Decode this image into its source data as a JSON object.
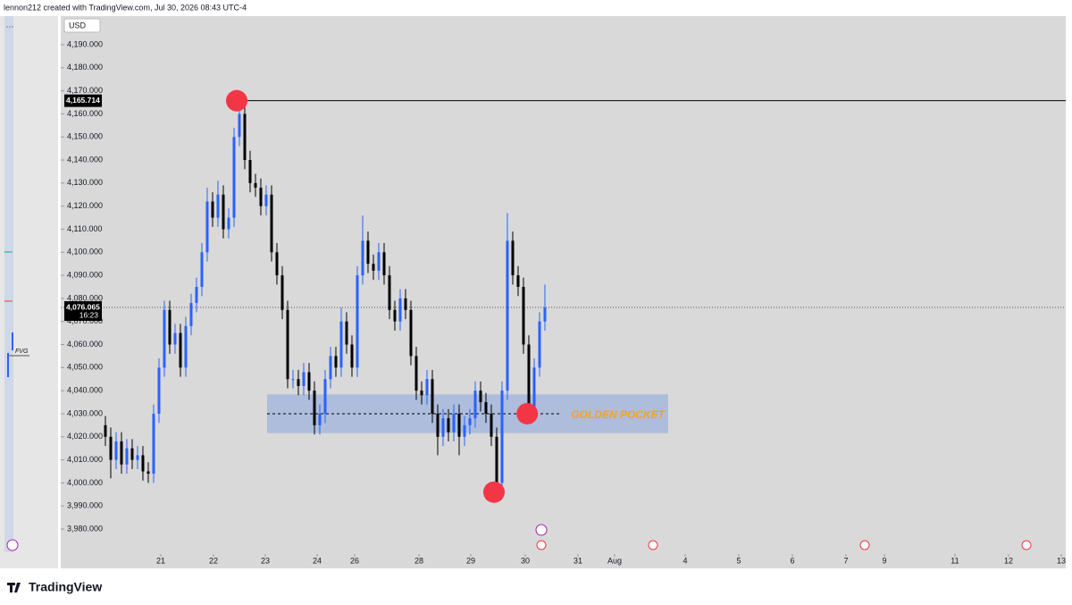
{
  "header": "lennon212 created with TradingView.com, Jul 30, 2026 08:43 UTC-4",
  "currency": "USD",
  "footer": "TradingView",
  "side_panel": {
    "menu": "···",
    "label": "FVG"
  },
  "chart_data": {
    "type": "candlestick",
    "up_color": "#2962ff",
    "down_color": "#000000",
    "xlim": [
      -7.33,
      180.17
    ],
    "xticks": [
      {
        "value": 11.33,
        "label": "21"
      },
      {
        "value": 21.17,
        "label": "22"
      },
      {
        "value": 30.83,
        "label": "23"
      },
      {
        "value": 40.5,
        "label": "24"
      },
      {
        "value": 47.5,
        "label": "26"
      },
      {
        "value": 59.5,
        "label": "28"
      },
      {
        "value": 69.17,
        "label": "29"
      },
      {
        "value": 79.33,
        "label": "30"
      },
      {
        "value": 89.17,
        "label": "31"
      },
      {
        "value": 96,
        "label": "Aug"
      },
      {
        "value": 109.17,
        "label": "4"
      },
      {
        "value": 119.17,
        "label": "5"
      },
      {
        "value": 129.17,
        "label": "6"
      },
      {
        "value": 139.17,
        "label": "7"
      },
      {
        "value": 146.33,
        "label": "9"
      },
      {
        "value": 159.5,
        "label": "11"
      },
      {
        "value": 169.5,
        "label": "12"
      },
      {
        "value": 179.33,
        "label": "13"
      }
    ],
    "ylim": [
      3969.15,
      4202.4
    ],
    "yticks": [
      {
        "value": 3980,
        "label": "3,980.000"
      },
      {
        "value": 3990,
        "label": "3,990.000"
      },
      {
        "value": 4000,
        "label": "4,000.000"
      },
      {
        "value": 4010,
        "label": "4,010.000"
      },
      {
        "value": 4020,
        "label": "4,020.000"
      },
      {
        "value": 4030,
        "label": "4,030.000"
      },
      {
        "value": 4040,
        "label": "4,040.000"
      },
      {
        "value": 4050,
        "label": "4,050.000"
      },
      {
        "value": 4060,
        "label": "4,060.000"
      },
      {
        "value": 4070,
        "label": "4,070.000"
      },
      {
        "value": 4080,
        "label": "4,080.000"
      },
      {
        "value": 4090,
        "label": "4,090.000"
      },
      {
        "value": 4100,
        "label": "4,100.000"
      },
      {
        "value": 4110,
        "label": "4,110.000"
      },
      {
        "value": 4120,
        "label": "4,120.000"
      },
      {
        "value": 4130,
        "label": "4,130.000"
      },
      {
        "value": 4140,
        "label": "4,140.000"
      },
      {
        "value": 4150,
        "label": "4,150.000"
      },
      {
        "value": 4160,
        "label": "4,160.000"
      },
      {
        "value": 4170,
        "label": "4,170.000"
      },
      {
        "value": 4180,
        "label": "4,180.000"
      },
      {
        "value": 4190,
        "label": "4,190.000"
      }
    ],
    "x": [
      1,
      2,
      3,
      4,
      5,
      6,
      7,
      8,
      9,
      10,
      11,
      12,
      13,
      14,
      15,
      16,
      17,
      18,
      19,
      20,
      21,
      22,
      23,
      24,
      25,
      26,
      27,
      28,
      29,
      30,
      31,
      32,
      33,
      34,
      35,
      36,
      37,
      38,
      39,
      40,
      41,
      42,
      43,
      44,
      45,
      46,
      47,
      48,
      49,
      50,
      51,
      52,
      53,
      54,
      55,
      56,
      57,
      58,
      59,
      60,
      61,
      62,
      63,
      64,
      65,
      66,
      67,
      68,
      69,
      70,
      71,
      72,
      73,
      74,
      75,
      76,
      77,
      78,
      79,
      80,
      81,
      82,
      83
    ],
    "open": [
      4025,
      4020,
      4010,
      4018,
      4008,
      4015,
      4010,
      4012,
      4005,
      4004,
      4030,
      4050,
      4075,
      4060,
      4065,
      4050,
      4068,
      4078,
      4085,
      4100,
      4122,
      4115,
      4125,
      4110,
      4115,
      4150,
      4160,
      4140,
      4130,
      4128,
      4120,
      4125,
      4100,
      4090,
      4075,
      4045,
      4045,
      4042,
      4048,
      4040,
      4025,
      4030,
      4045,
      4055,
      4050,
      4070,
      4060,
      4050,
      4090,
      4105,
      4095,
      4092,
      4100,
      4090,
      4075,
      4070,
      4080,
      4075,
      4055,
      4040,
      4038,
      4045,
      4030,
      4020,
      4028,
      4022,
      4030,
      4020,
      4025,
      4028,
      4040,
      4035,
      4030,
      4020,
      4000,
      4040,
      4105,
      4090,
      4085,
      4060,
      4033,
      4050,
      4070
    ],
    "high": [
      4029,
      4024,
      4022,
      4022,
      4019,
      4019,
      4016,
      4016,
      4009,
      4034,
      4054,
      4079,
      4079,
      4069,
      4069,
      4072,
      4082,
      4089,
      4104,
      4128,
      4126,
      4131,
      4129,
      4119,
      4154,
      4165.714,
      4164,
      4144,
      4134,
      4132,
      4129,
      4129,
      4104,
      4094,
      4079,
      4049,
      4049,
      4052,
      4052,
      4044,
      4034,
      4049,
      4059,
      4059,
      4076,
      4074,
      4064,
      4094,
      4116,
      4109,
      4099,
      4104,
      4104,
      4094,
      4079,
      4084,
      4084,
      4079,
      4059,
      4044,
      4049,
      4049,
      4034,
      4032,
      4032,
      4034,
      4034,
      4029,
      4032,
      4044,
      4044,
      4039,
      4034,
      4024,
      4044,
      4117,
      4109,
      4094,
      4089,
      4064,
      4054,
      4074,
      4086
    ],
    "low": [
      4016,
      4002,
      4006,
      4004,
      4004,
      4006,
      4006,
      4001,
      4000,
      4000,
      4026,
      4046,
      4056,
      4056,
      4046,
      4046,
      4064,
      4074,
      4081,
      4096,
      4111,
      4111,
      4106,
      4106,
      4111,
      4146,
      4136,
      4126,
      4124,
      4116,
      4116,
      4096,
      4086,
      4071,
      4041,
      4041,
      4038,
      4038,
      4036,
      4021,
      4021,
      4026,
      4041,
      4046,
      4046,
      4056,
      4046,
      4046,
      4086,
      4091,
      4088,
      4088,
      4086,
      4071,
      4066,
      4066,
      4071,
      4051,
      4036,
      4034,
      4034,
      4026,
      4012,
      4016,
      4018,
      4018,
      4012,
      4016,
      4021,
      4024,
      4031,
      4026,
      4016,
      3997,
      3996,
      4036,
      4086,
      4081,
      4056,
      4030,
      4029,
      4046,
      4066
    ],
    "close": [
      4020,
      4010,
      4018,
      4008,
      4015,
      4010,
      4012,
      4005,
      4004,
      4030,
      4050,
      4075,
      4060,
      4065,
      4050,
      4068,
      4078,
      4085,
      4100,
      4122,
      4115,
      4125,
      4110,
      4115,
      4150,
      4160,
      4140,
      4130,
      4128,
      4120,
      4125,
      4100,
      4090,
      4075,
      4045,
      4045,
      4042,
      4048,
      4040,
      4025,
      4030,
      4045,
      4055,
      4050,
      4070,
      4060,
      4050,
      4090,
      4105,
      4095,
      4092,
      4100,
      4090,
      4075,
      4070,
      4080,
      4075,
      4055,
      4040,
      4038,
      4045,
      4030,
      4020,
      4028,
      4022,
      4030,
      4020,
      4025,
      4028,
      4040,
      4035,
      4030,
      4020,
      4000,
      4040,
      4105,
      4090,
      4085,
      4060,
      4033,
      4050,
      4070,
      4076.065
    ],
    "high_line": {
      "value": 4165.714,
      "label": "4,165.714",
      "x0": 25.5
    },
    "current_price": {
      "value": 4076.065,
      "label": "4,076.065",
      "countdown": "16:23"
    },
    "zone": {
      "x0": 31.17,
      "x1": 106,
      "y0": 4021.6,
      "y1": 4038.4,
      "mid": 4030,
      "mid_x1": 86,
      "label": "GOLDEN POCKET",
      "color": "#4a7fe0"
    },
    "markers": {
      "x": [
        25.5,
        79.7,
        73.5
      ],
      "y": [
        4165.714,
        4030,
        3996
      ],
      "color": "#f23645"
    }
  }
}
